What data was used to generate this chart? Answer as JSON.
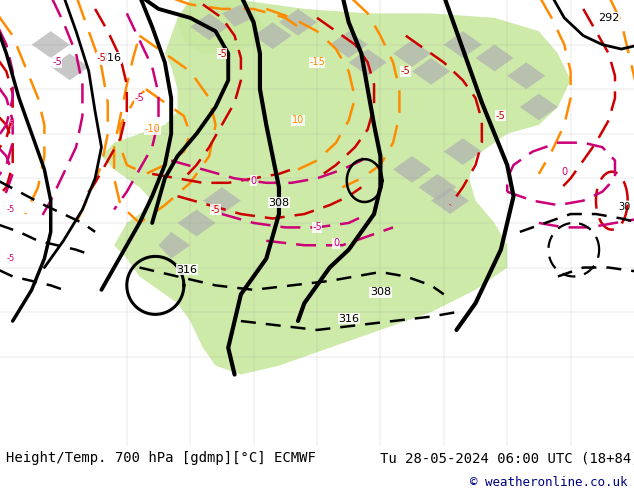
{
  "title_left": "Height/Temp. 700 hPa [gdmp][°C] ECMWF",
  "title_right": "Tu 28-05-2024 06:00 UTC (18+84)",
  "copyright": "© weatheronline.co.uk",
  "bg_color": "#ffffff",
  "ocean_color": "#e8e8e8",
  "land_green_color": "#c8e8a0",
  "land_gray_color": "#b0b0b0",
  "text_color": "#000000",
  "copyright_color": "#000080",
  "title_fontsize": 10,
  "copyright_fontsize": 9,
  "fig_width": 6.34,
  "fig_height": 4.9,
  "dpi": 100
}
